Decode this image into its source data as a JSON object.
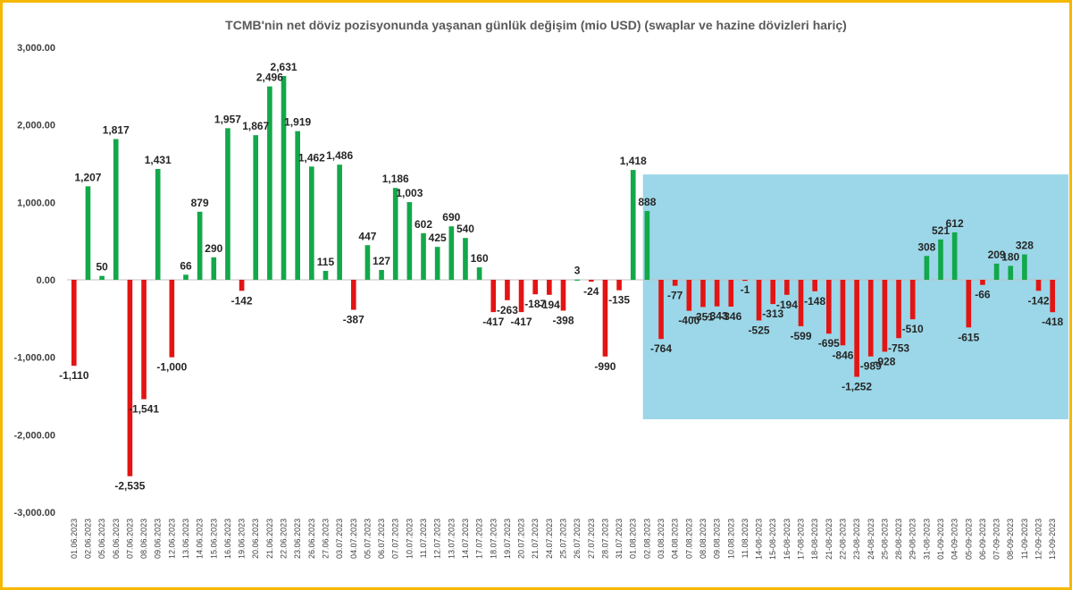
{
  "chart_data": {
    "type": "bar",
    "title": "TCMB'nin net döviz pozisyonunda yaşanan günlük değişim (mio USD) (swaplar ve hazine dövizleri hariç)",
    "xlabel": "",
    "ylabel": "",
    "ylim": [
      -3000,
      3000
    ],
    "yticks": [
      3000,
      2000,
      1000,
      0,
      -1000,
      -2000,
      -3000
    ],
    "ytick_labels": [
      "3,000.00",
      "2,000.00",
      "1,000.00",
      "0.00",
      "-1,000.00",
      "-2,000.00",
      "-3,000.00"
    ],
    "grid": false,
    "positive_color": "#13a84a",
    "negative_color": "#e31414",
    "highlight_color": "#9bd7e8",
    "highlight_start_category": "02.08.2023",
    "categories": [
      "01.06.2023",
      "02.06.2023",
      "05.06.2023",
      "06.06.2023",
      "07.06.2023",
      "08.06.2023",
      "09.06.2023",
      "12.06.2023",
      "13.06.2023",
      "14.06.2023",
      "15.06.2023",
      "16.06.2023",
      "19.06.2023",
      "20.06.2023",
      "21.06.2023",
      "22.06.2023",
      "23.06.2023",
      "26.06.2023",
      "27.06.2023",
      "03.07.2023",
      "04.07.2023",
      "05.07.2023",
      "06.07.2023",
      "07.07.2023",
      "10.07.2023",
      "11.07.2023",
      "12.07.2023",
      "13.07.2023",
      "14.07.2023",
      "17.07.2023",
      "18.07.2023",
      "19.07.2023",
      "20.07.2023",
      "21.07.2023",
      "24.07.2023",
      "25.07.2023",
      "26.07.2023",
      "27.07.2023",
      "28.07.2023",
      "31.07.2023",
      "01.08.2023",
      "02.08.2023",
      "03.08.2023",
      "04.08.2023",
      "07.08.2023",
      "08.08.2023",
      "09.08.2023",
      "10.08.2023",
      "11.08.2023",
      "14-08-2023",
      "15-08-2023",
      "16-08-2023",
      "17-08-2023",
      "18-08-2023",
      "21-08-2023",
      "22-08-2023",
      "23-08-2023",
      "24-08-2023",
      "25-08-2023",
      "28-08-2023",
      "29-08-2023",
      "31-08-2023",
      "01-09-2023",
      "04-09-2023",
      "05-09-2023",
      "06-09-2023",
      "07-09-2023",
      "08-09-2023",
      "11-09-2023",
      "12-09-2023",
      "13-09-2023"
    ],
    "values": [
      -1110,
      1207,
      50,
      1817,
      -2535,
      -1541,
      1431,
      -1000,
      66,
      879,
      290,
      1957,
      -142,
      1867,
      2496,
      2631,
      1919,
      1462,
      115,
      1486,
      -387,
      447,
      127,
      1186,
      1003,
      602,
      425,
      690,
      540,
      160,
      -417,
      -263,
      -417,
      -187,
      -194,
      -398,
      3,
      -24,
      -990,
      -135,
      1418,
      888,
      -764,
      -77,
      -400,
      -351,
      -343,
      -346,
      -1,
      -525,
      -313,
      -194,
      -599,
      -148,
      -695,
      -846,
      -1252,
      -989,
      -928,
      -753,
      -510,
      308,
      521,
      612,
      -615,
      -66,
      209,
      180,
      328,
      -142,
      -418
    ],
    "data_labels": [
      "-1,110",
      "1,207",
      "50",
      "1,817",
      "-2,535",
      "-1,541",
      "1,431",
      "-1,000",
      "66",
      "879",
      "290",
      "1,957",
      "-142",
      "1,867",
      "2,496",
      "2,631",
      "1,919",
      "1,462",
      "115",
      "1,486",
      "-387",
      "447",
      "127",
      "1,186",
      "1,003",
      "602",
      "425",
      "690",
      "540",
      "160",
      "-417",
      "-263",
      "-417",
      "-187",
      "-194",
      "-398",
      "3",
      "-24",
      "-990",
      "-135",
      "1,418",
      "888",
      "-764",
      "-77",
      "-400",
      "-351",
      "-343",
      "-346",
      "-1",
      "-525",
      "-313",
      "-194",
      "-599",
      "-148",
      "-695",
      "-846",
      "-1,252",
      "-989",
      "-928",
      "-753",
      "-510",
      "308",
      "521",
      "612",
      "-615",
      "-66",
      "209",
      "180",
      "328",
      "-142",
      "-418"
    ]
  }
}
